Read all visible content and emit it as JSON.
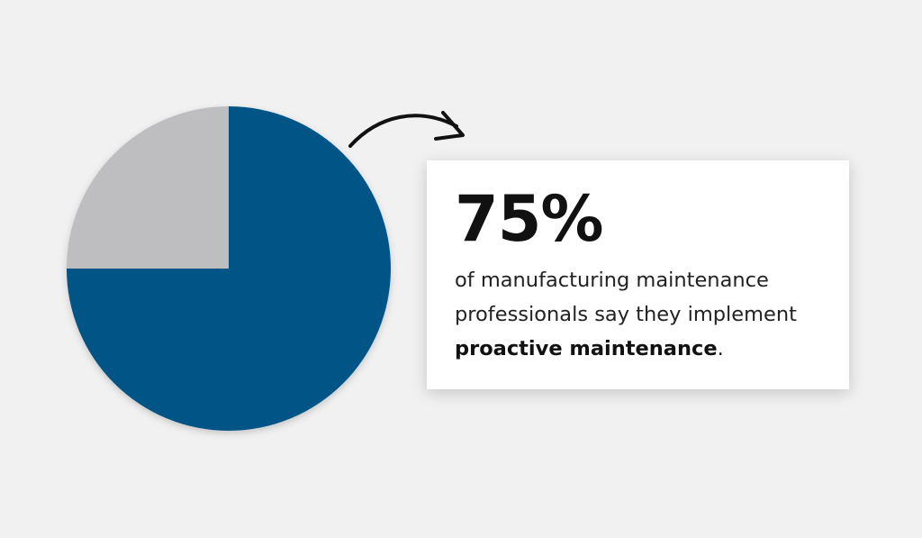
{
  "chart_data": {
    "type": "pie",
    "slices": [
      {
        "label": "",
        "value": 75,
        "color": "#005586"
      },
      {
        "label": "",
        "value": 25,
        "color": "#bebec1"
      }
    ]
  },
  "stat": {
    "value": "75%",
    "text_before": "of manufacturing maintenance professionals say they implement",
    "highlight": "proactive maintenance",
    "text_after": "."
  }
}
